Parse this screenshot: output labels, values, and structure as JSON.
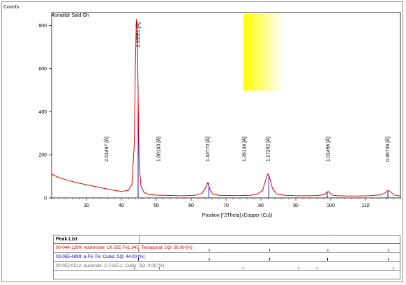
{
  "window": {
    "corner_label": "Counts"
  },
  "chart_data": {
    "type": "line",
    "title": "4smalldr Sald Gh",
    "xlabel": "Position [°2Theta] (Copper (Cu))",
    "ylabel": "Counts",
    "xlim": [
      20,
      120
    ],
    "ylim": [
      0,
      860
    ],
    "xticks": [
      30,
      40,
      50,
      60,
      70,
      80,
      90,
      100,
      110
    ],
    "yticks": [
      0,
      200,
      400,
      600,
      800
    ],
    "series": [
      {
        "color": "#e00000",
        "x": [
          20,
          22,
          25,
          28,
          31,
          34,
          37,
          40,
          42,
          43,
          43.7,
          44.0,
          44.3,
          44.55,
          44.8,
          45.1,
          45.6,
          46.5,
          48,
          50,
          52,
          55,
          58,
          61,
          63,
          64.1,
          64.7,
          65.0,
          65.4,
          66.2,
          68,
          71,
          74,
          77,
          79,
          80.5,
          81.5,
          82.0,
          82.5,
          83.3,
          84.5,
          87,
          90,
          93,
          96,
          98,
          98.8,
          99.4,
          99.8,
          100.5,
          102,
          105,
          108,
          111,
          114,
          115.5,
          116.4,
          117.2,
          118.2,
          120
        ],
        "y": [
          110,
          95,
          80,
          68,
          58,
          48,
          38,
          30,
          35,
          60,
          250,
          610,
          830,
          790,
          480,
          160,
          55,
          25,
          16,
          13,
          12,
          11,
          10,
          12,
          20,
          45,
          70,
          62,
          38,
          18,
          12,
          11,
          11,
          12,
          18,
          35,
          90,
          112,
          95,
          45,
          18,
          12,
          10,
          10,
          11,
          15,
          24,
          30,
          22,
          13,
          10,
          9,
          9,
          10,
          14,
          22,
          35,
          28,
          14,
          9
        ]
      }
    ],
    "peaks": [
      {
        "x": 44.8,
        "label": "2.03551 [Å]"
      },
      {
        "x": 35.7,
        "label": "2.51497 [Å]"
      },
      {
        "x": 50.6,
        "label": "1.80163 [Å]"
      },
      {
        "x": 64.7,
        "label": "1.43770 [Å]"
      },
      {
        "x": 75.2,
        "label": "1.26139 [Å]"
      },
      {
        "x": 82.0,
        "label": "1.17202 [Å]"
      },
      {
        "x": 99.2,
        "label": "1.01456 [Å]"
      },
      {
        "x": 116.3,
        "label": "0.90739 [Å]"
      }
    ],
    "reference_lines": [
      {
        "x": 44.8,
        "height": 520,
        "color": "#1010c0"
      },
      {
        "x": 44.8,
        "height": 350,
        "color": "#1010c0"
      },
      {
        "x": 65.1,
        "height": 70,
        "color": "#1010c0"
      },
      {
        "x": 82.3,
        "height": 100,
        "color": "#1010c0"
      },
      {
        "x": 99.0,
        "height": 30,
        "color": "#1010c0"
      },
      {
        "x": 116.4,
        "height": 30,
        "color": "#1010c0"
      }
    ],
    "legend_box": {
      "color_start": "#ffff00",
      "color_end": "#ffffff"
    }
  },
  "peak_list": {
    "title": "Peak List",
    "rows": [
      {
        "text": "00-044-1290; martensite; C0.055 Fe1.945; Tetragonal; SQ: 56.00 [%]",
        "color": "#e00000",
        "sticks": [
          44.8,
          65.0,
          82.3,
          99.0,
          116.4
        ]
      },
      {
        "text": "03-065-4899; à-Fe; Fe; Cubic; SQ: 44.00 [%]",
        "color": "#0000c0",
        "sticks": [
          44.7,
          65.0,
          82.3,
          98.9,
          116.4
        ]
      },
      {
        "text": "00-052-0512; austenite; C Fe15.1; Cubic; SQ: 0.00 [%]",
        "color": "#707070",
        "sticks": [
          43.5,
          50.7,
          74.7,
          90.6,
          95.9,
          117.8
        ]
      }
    ]
  }
}
